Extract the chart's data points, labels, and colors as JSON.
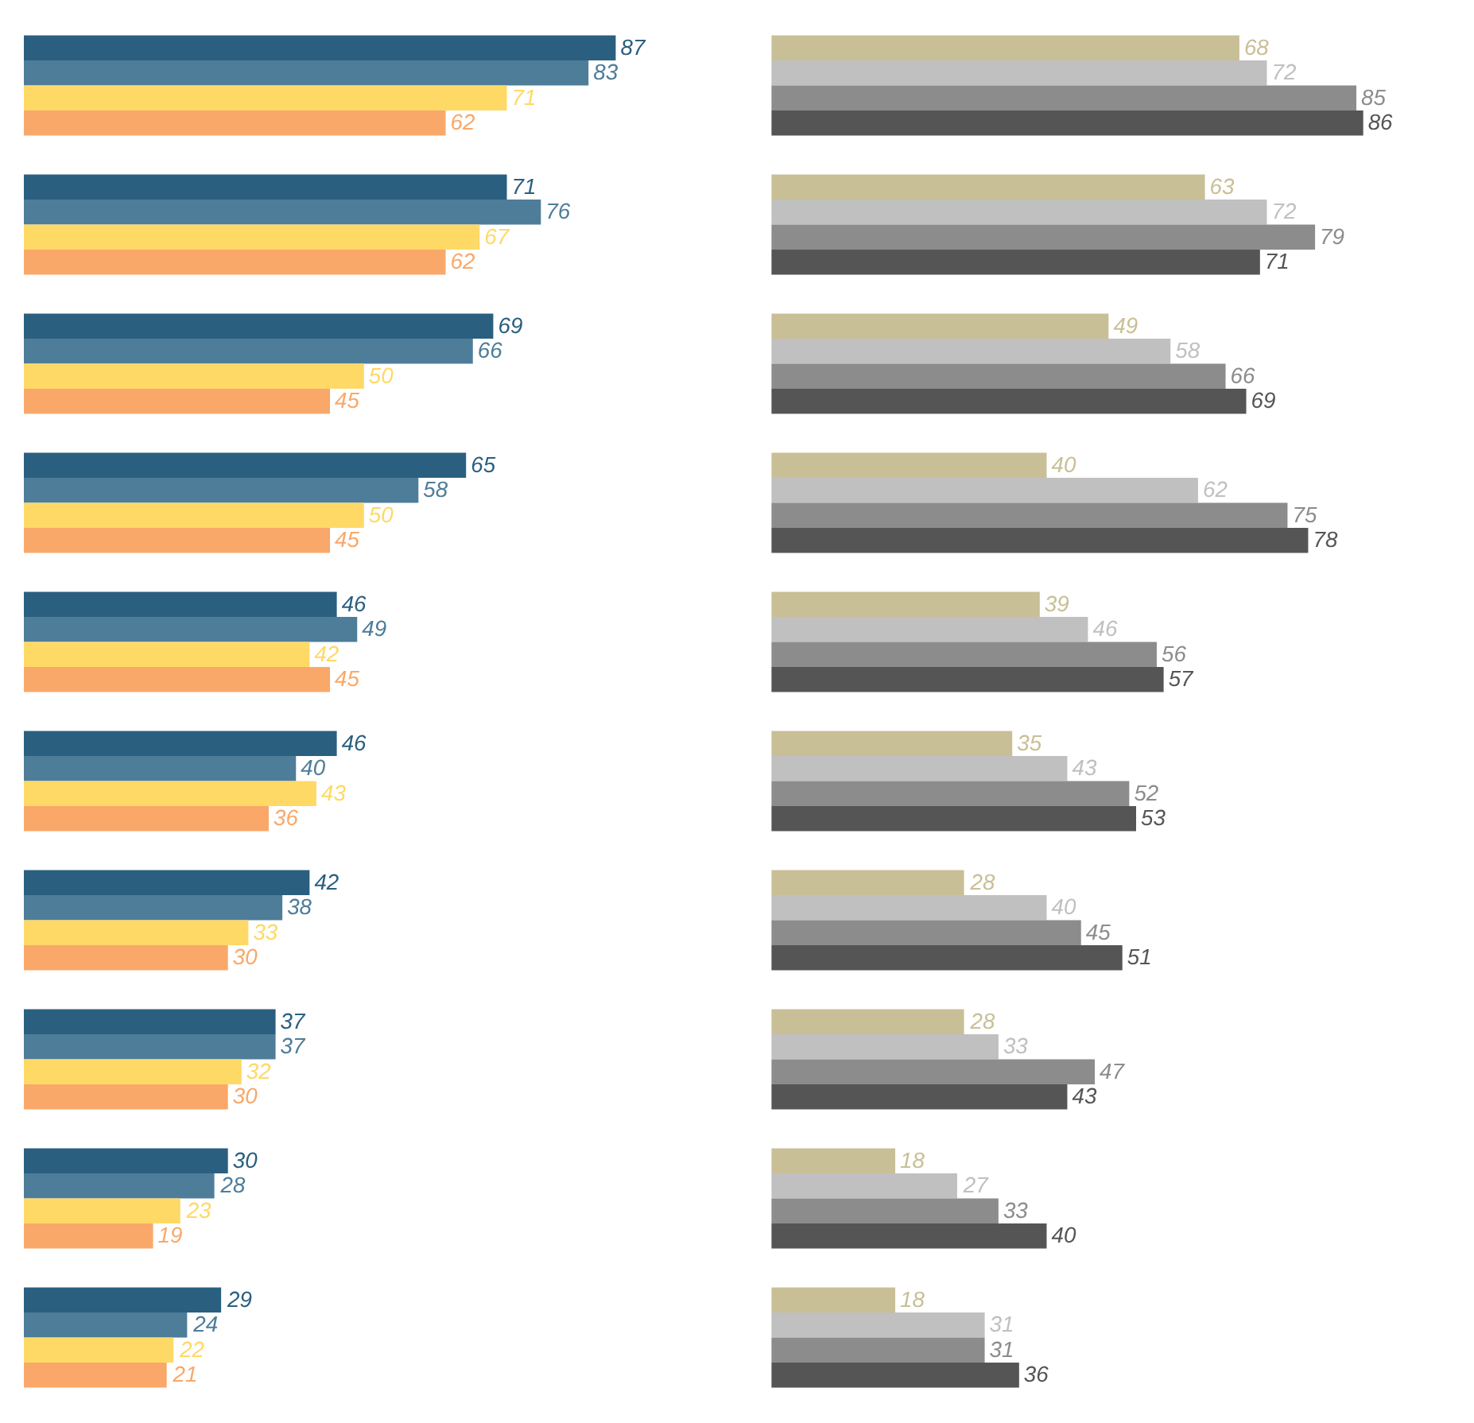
{
  "chart_data": [
    {
      "type": "bar",
      "orientation": "horizontal",
      "categories": [
        null,
        null,
        null,
        null,
        null,
        null,
        null,
        null,
        null,
        null
      ],
      "data_labels": true,
      "series": [
        {
          "color": "#2a5f80",
          "values": [
            87,
            71,
            69,
            65,
            46,
            46,
            42,
            37,
            30,
            29
          ]
        },
        {
          "color": "#4e7d99",
          "values": [
            83,
            76,
            66,
            58,
            49,
            40,
            38,
            37,
            28,
            24
          ]
        },
        {
          "color": "#ffd966",
          "values": [
            71,
            67,
            50,
            50,
            42,
            43,
            33,
            32,
            23,
            22
          ]
        },
        {
          "color": "#f9a86a",
          "values": [
            62,
            62,
            45,
            45,
            45,
            36,
            30,
            30,
            19,
            21
          ]
        }
      ]
    },
    {
      "type": "bar",
      "orientation": "horizontal",
      "categories": [
        null,
        null,
        null,
        null,
        null,
        null,
        null,
        null,
        null,
        null
      ],
      "data_labels": true,
      "series": [
        {
          "color": "#c9bf96",
          "values": [
            68,
            63,
            49,
            40,
            39,
            35,
            28,
            28,
            18,
            18
          ]
        },
        {
          "color": "#c0c0c0",
          "values": [
            72,
            72,
            58,
            62,
            46,
            43,
            40,
            33,
            27,
            31
          ]
        },
        {
          "color": "#8c8c8c",
          "values": [
            85,
            79,
            66,
            75,
            56,
            52,
            45,
            47,
            33,
            31
          ]
        },
        {
          "color": "#555555",
          "values": [
            86,
            71,
            69,
            78,
            57,
            53,
            51,
            43,
            40,
            36
          ]
        }
      ]
    }
  ]
}
